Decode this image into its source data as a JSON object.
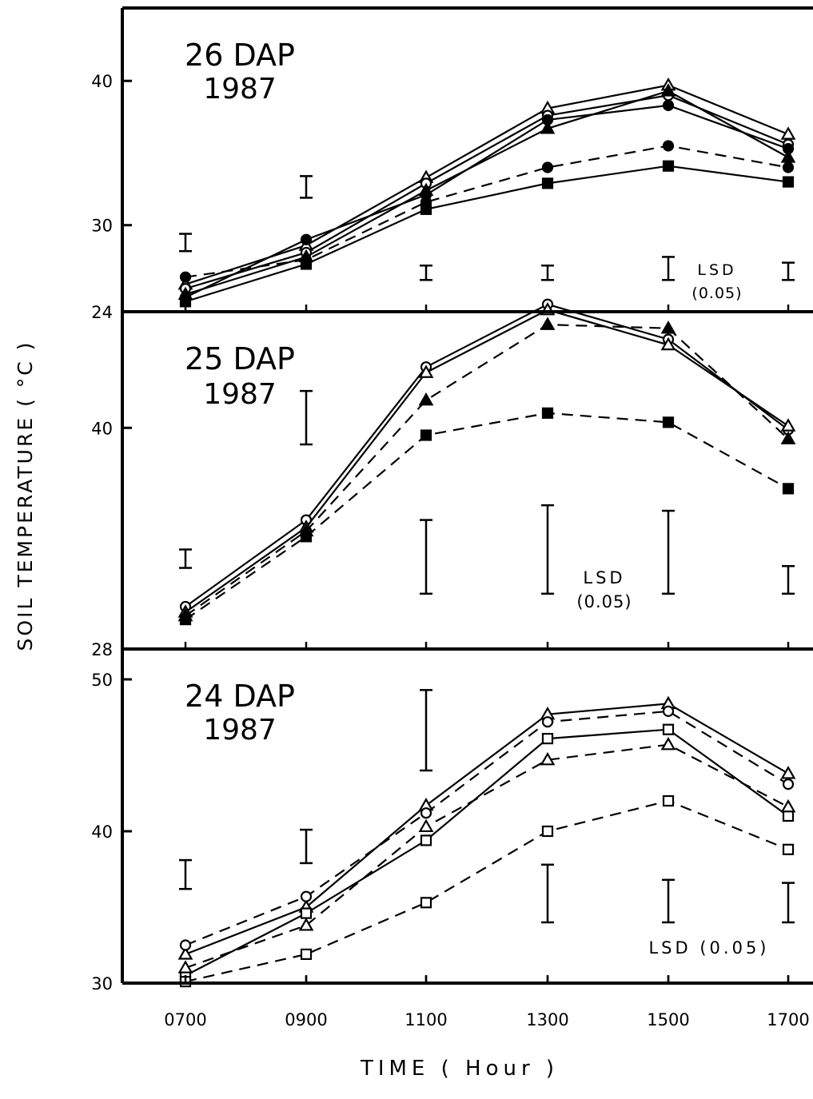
{
  "figure": {
    "ylabel": "SOIL TEMPERATURE ( °C )",
    "xlabel": "TIME ( Hour )",
    "x_ticks": [
      "0700",
      "0900",
      "1100",
      "1300",
      "1500",
      "1700"
    ]
  },
  "chart_data": [
    {
      "type": "line",
      "title_line1": "26 DAP",
      "title_line2": "1987",
      "x": [
        "0700",
        "0900",
        "1100",
        "1300",
        "1500",
        "1700"
      ],
      "ylim": [
        24,
        44.5
      ],
      "y_ticks": [
        24,
        30,
        40
      ],
      "lsd_label_line1": "LSD",
      "lsd_label_line2": "(0.05)",
      "series": [
        {
          "marker": "open-triangle",
          "dash": false,
          "values": [
            25.9,
            28.6,
            33.3,
            38.1,
            39.7,
            36.3
          ]
        },
        {
          "marker": "open-circle",
          "dash": false,
          "values": [
            25.6,
            28.1,
            32.9,
            37.6,
            39.0,
            35.6
          ]
        },
        {
          "marker": "filled-triangle",
          "dash": false,
          "values": [
            25.2,
            27.8,
            32.4,
            36.7,
            39.3,
            34.7
          ]
        },
        {
          "marker": "filled-circle",
          "dash": false,
          "values": [
            25.0,
            29.0,
            32.1,
            37.3,
            38.3,
            35.3
          ]
        },
        {
          "marker": "filled-circle",
          "dash": true,
          "values": [
            26.4,
            27.6,
            31.6,
            34.0,
            35.5,
            34.0
          ]
        },
        {
          "marker": "filled-square",
          "dash": false,
          "values": [
            24.7,
            27.3,
            31.1,
            32.9,
            34.1,
            33.0
          ]
        }
      ],
      "lsd_bars": [
        {
          "x": "0700",
          "low": 28.2,
          "high": 29.4
        },
        {
          "x": "0900",
          "low": 31.9,
          "high": 33.4
        },
        {
          "x": "1100",
          "low": 26.2,
          "high": 27.2
        },
        {
          "x": "1300",
          "low": 26.2,
          "high": 27.2
        },
        {
          "x": "1500",
          "low": 26.2,
          "high": 27.8
        },
        {
          "x": "1700",
          "low": 26.2,
          "high": 27.4
        }
      ]
    },
    {
      "type": "line",
      "title_line1": "25 DAP",
      "title_line2": "1987",
      "x": [
        "0700",
        "0900",
        "1100",
        "1300",
        "1500",
        "1700"
      ],
      "ylim": [
        28,
        46.3
      ],
      "y_ticks": [
        28,
        40
      ],
      "lsd_label_line1": "LSD",
      "lsd_label_line2": "(0.05)",
      "series": [
        {
          "marker": "open-circle",
          "dash": false,
          "values": [
            30.3,
            35.0,
            43.3,
            46.7,
            44.8,
            39.9
          ]
        },
        {
          "marker": "open-triangle",
          "dash": false,
          "values": [
            30.0,
            34.6,
            43.0,
            46.4,
            44.5,
            40.1
          ]
        },
        {
          "marker": "filled-triangle",
          "dash": true,
          "values": [
            29.8,
            34.4,
            41.5,
            45.6,
            45.4,
            39.4
          ]
        },
        {
          "marker": "filled-square",
          "dash": true,
          "values": [
            29.6,
            34.1,
            39.6,
            40.8,
            40.3,
            36.7
          ]
        }
      ],
      "lsd_bars": [
        {
          "x": "0700",
          "low": 32.4,
          "high": 33.4
        },
        {
          "x": "0900",
          "low": 39.1,
          "high": 42.0
        },
        {
          "x": "1100",
          "low": 31.0,
          "high": 35.0
        },
        {
          "x": "1300",
          "low": 31.0,
          "high": 35.8
        },
        {
          "x": "1500",
          "low": 31.0,
          "high": 35.5
        },
        {
          "x": "1700",
          "low": 31.0,
          "high": 32.5
        }
      ]
    },
    {
      "type": "line",
      "title_line1": "24 DAP",
      "title_line2": "1987",
      "x": [
        "0700",
        "0900",
        "1100",
        "1300",
        "1500",
        "1700"
      ],
      "ylim": [
        30,
        52
      ],
      "y_ticks": [
        30,
        40,
        50
      ],
      "lsd_label_line1": "LSD (0.05)",
      "series": [
        {
          "marker": "open-triangle",
          "dash": false,
          "values": [
            31.9,
            35.0,
            41.7,
            47.7,
            48.4,
            43.8
          ]
        },
        {
          "marker": "open-circle",
          "dash": true,
          "values": [
            32.5,
            35.7,
            41.2,
            47.2,
            47.9,
            43.1
          ]
        },
        {
          "marker": "open-square",
          "dash": false,
          "values": [
            30.5,
            34.6,
            39.4,
            46.1,
            46.7,
            41.0
          ]
        },
        {
          "marker": "open-triangle",
          "dash": true,
          "values": [
            31.0,
            33.8,
            40.3,
            44.7,
            45.7,
            41.6
          ]
        },
        {
          "marker": "open-square",
          "dash": true,
          "values": [
            30.1,
            31.9,
            35.3,
            40.0,
            42.0,
            38.8
          ]
        }
      ],
      "lsd_bars": [
        {
          "x": "0700",
          "low": 36.2,
          "high": 38.1
        },
        {
          "x": "0900",
          "low": 37.9,
          "high": 40.1
        },
        {
          "x": "1100",
          "low": 44.0,
          "high": 49.3
        },
        {
          "x": "1300",
          "low": 34.0,
          "high": 37.8
        },
        {
          "x": "1500",
          "low": 34.0,
          "high": 36.8
        },
        {
          "x": "1700",
          "low": 34.0,
          "high": 36.6
        }
      ]
    }
  ]
}
